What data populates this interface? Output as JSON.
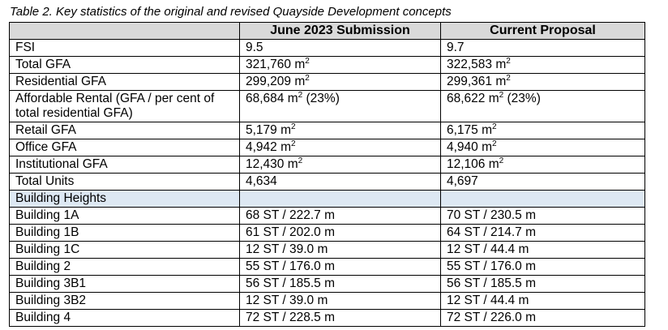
{
  "caption": "Table 2. Key statistics of the original and revised Quayside Development concepts",
  "table": {
    "headers": [
      "",
      "June 2023 Submission",
      "Current Proposal"
    ],
    "rows": [
      {
        "label": "FSI",
        "june": "9.5",
        "current": "9.7"
      },
      {
        "label": "Total GFA",
        "june": "321,760 m",
        "june_sup": "2",
        "current": "322,583 m",
        "current_sup": "2"
      },
      {
        "label": "Residential GFA",
        "june": "299,209 m",
        "june_sup": "2",
        "current": "299,361 m",
        "current_sup": "2"
      },
      {
        "label": "Affordable Rental (GFA / per cent of total residential GFA)",
        "june": "68,684 m",
        "june_sup": "2",
        "june_suffix": " (23%)",
        "current": "68,622 m",
        "current_sup": "2",
        "current_suffix": " (23%)"
      },
      {
        "label": "Retail GFA",
        "june": "5,179 m",
        "june_sup": "2",
        "current": "6,175 m",
        "current_sup": "2"
      },
      {
        "label": "Office GFA",
        "june": "4,942 m",
        "june_sup": "2",
        "current": "4,940 m",
        "current_sup": "2"
      },
      {
        "label": "Institutional GFA",
        "june": "12,430 m",
        "june_sup": "2",
        "current": "12,106 m",
        "current_sup": "2"
      },
      {
        "label": "Total Units",
        "june": "4,634",
        "current": "4,697"
      }
    ],
    "section_label": "Building Heights",
    "building_rows": [
      {
        "label": "Building 1A",
        "june": "68 ST / 222.7 m",
        "current": "70 ST / 230.5 m"
      },
      {
        "label": "Building 1B",
        "june": "61 ST / 202.0 m",
        "current": "64 ST / 214.7 m"
      },
      {
        "label": "Building 1C",
        "june": "12 ST / 39.0 m",
        "current": "12 ST / 44.4 m"
      },
      {
        "label": "Building 2",
        "june": "55 ST / 176.0 m",
        "current": "55 ST / 176.0 m"
      },
      {
        "label": "Building 3B1",
        "june": "56 ST / 185.5 m",
        "current": "56 ST / 185.5 m"
      },
      {
        "label": "Building 3B2",
        "june": "12 ST / 39.0 m",
        "current": "12 ST / 44.4 m"
      },
      {
        "label": "Building 4",
        "june": "72 ST / 228.5 m",
        "current": "72 ST / 226.0 m"
      }
    ]
  }
}
